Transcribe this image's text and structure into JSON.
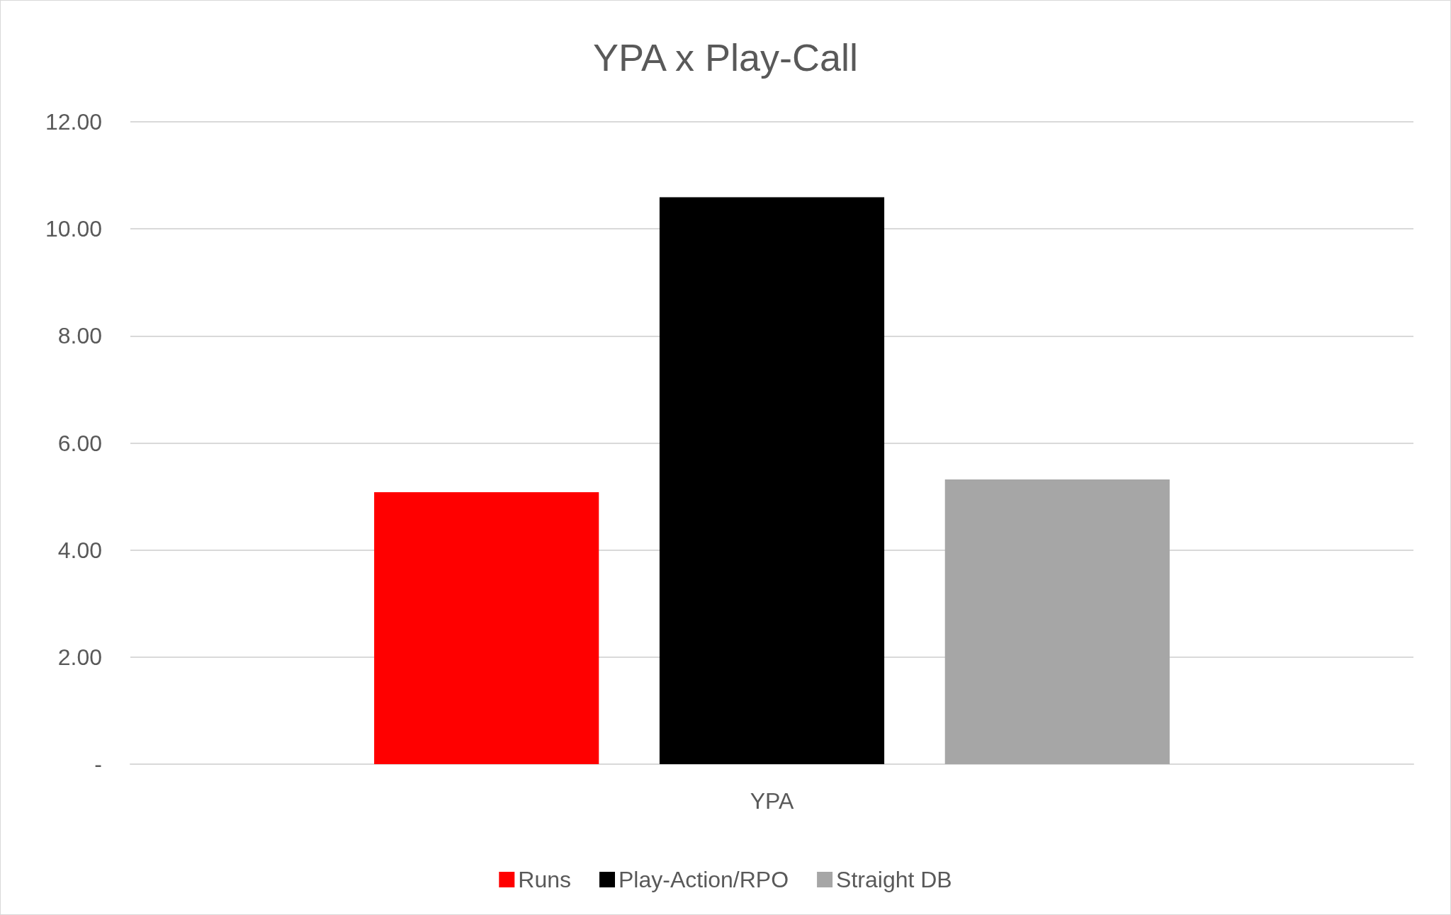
{
  "chart_data": {
    "type": "bar",
    "title": "YPA x Play-Call",
    "categories": [
      "YPA"
    ],
    "series": [
      {
        "name": "Runs",
        "color": "#ff0000",
        "values": [
          5.08
        ]
      },
      {
        "name": "Play-Action/RPO",
        "color": "#000000",
        "values": [
          10.59
        ]
      },
      {
        "name": "Straight DB",
        "color": "#a6a6a6",
        "values": [
          5.32
        ]
      }
    ],
    "ylim": [
      0,
      12
    ],
    "yticks": [
      {
        "value": 0,
        "label": "-"
      },
      {
        "value": 2,
        "label": "2.00"
      },
      {
        "value": 4,
        "label": "4.00"
      },
      {
        "value": 6,
        "label": "6.00"
      },
      {
        "value": 8,
        "label": "8.00"
      },
      {
        "value": 10,
        "label": "10.00"
      },
      {
        "value": 12,
        "label": "12.00"
      }
    ],
    "grid": "y",
    "legend": "bottom"
  }
}
